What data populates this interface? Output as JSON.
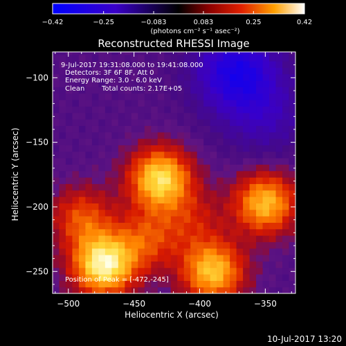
{
  "colorbar": {
    "ticks": [
      "-0.42",
      "-0.25",
      "-0.083",
      "0.083",
      "0.25",
      "0.42"
    ],
    "unit_label": "(photons cm⁻² s⁻¹ asec⁻²)"
  },
  "chart_data": {
    "type": "heatmap",
    "title": "Reconstructed RHESSI Image",
    "xlabel": "Heliocentric X (arcsec)",
    "ylabel": "Heliocentric Y (arcsec)",
    "xlim": [
      -512,
      -327
    ],
    "ylim": [
      -267,
      -80
    ],
    "x_ticks": [
      "−500",
      "−450",
      "−400",
      "−350"
    ],
    "y_ticks": [
      "−100",
      "−150",
      "−200",
      "−250"
    ],
    "value_range": [
      -0.42,
      0.42
    ],
    "annotations": [
      "9-Jul-2017 19:31:08.000 to 19:41:08.000",
      "Detectors: 3F 6F 8F, Att 0",
      "Energy Range: 3.0 - 6.0 keV",
      "Clean",
      "Total counts: 2.17E+05"
    ],
    "peak_label": "Position of Peak = [-472,-245]",
    "sources": [
      {
        "x": -473,
        "y": -245,
        "intensity": 0.42
      },
      {
        "x": -430,
        "y": -178,
        "intensity": 0.38
      },
      {
        "x": -390,
        "y": -250,
        "intensity": 0.34
      },
      {
        "x": -350,
        "y": -197,
        "intensity": 0.33
      },
      {
        "x": -490,
        "y": -208,
        "intensity": 0.2
      },
      {
        "x": -440,
        "y": -225,
        "intensity": 0.18
      },
      {
        "x": -405,
        "y": -210,
        "intensity": 0.12
      }
    ],
    "negative_regions": [
      {
        "x": -372,
        "y": -95,
        "intensity": -0.28
      },
      {
        "x": -350,
        "y": -130,
        "intensity": -0.12
      }
    ]
  },
  "footer": {
    "timestamp": "10-Jul-2017 13:20"
  }
}
